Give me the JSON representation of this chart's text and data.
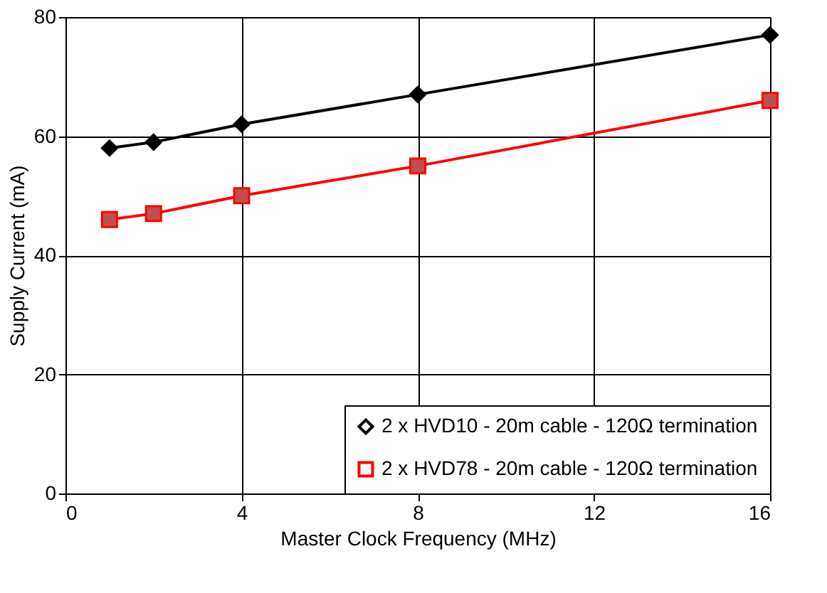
{
  "chart_data": {
    "type": "line",
    "xlabel": "Master Clock Frequency (MHz)",
    "ylabel": "Supply Current (mA)",
    "x": [
      1,
      2,
      4,
      8,
      16
    ],
    "series": [
      {
        "name": "2 x HVD10 - 20m cable - 120Ω termination",
        "color": "#000000",
        "marker": "diamond",
        "values": [
          58,
          59,
          62,
          67,
          77
        ]
      },
      {
        "name": "2 x HVD78 - 20m cable - 120Ω termination",
        "color": "#ff0000",
        "marker": "square",
        "values": [
          46,
          47,
          50,
          55,
          66
        ]
      }
    ],
    "xlim": [
      0,
      16
    ],
    "xticks": [
      0,
      4,
      8,
      12,
      16
    ],
    "ylim": [
      0,
      80
    ],
    "yticks": [
      0,
      20,
      40,
      60,
      80
    ],
    "grid": true,
    "legend": "bottom right",
    "line_style": "solid"
  }
}
